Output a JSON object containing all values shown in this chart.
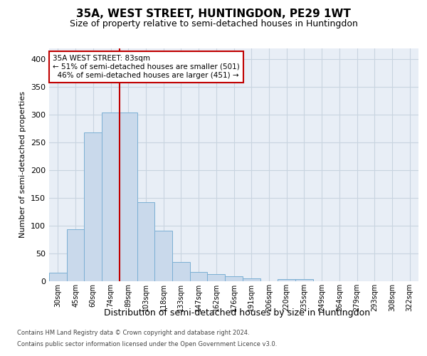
{
  "title": "35A, WEST STREET, HUNTINGDON, PE29 1WT",
  "subtitle": "Size of property relative to semi-detached houses in Huntingdon",
  "xlabel": "Distribution of semi-detached houses by size in Huntingdon",
  "ylabel": "Number of semi-detached properties",
  "footer_line1": "Contains HM Land Registry data © Crown copyright and database right 2024.",
  "footer_line2": "Contains public sector information licensed under the Open Government Licence v3.0.",
  "categories": [
    "30sqm",
    "45sqm",
    "60sqm",
    "74sqm",
    "89sqm",
    "103sqm",
    "118sqm",
    "133sqm",
    "147sqm",
    "162sqm",
    "176sqm",
    "191sqm",
    "206sqm",
    "220sqm",
    "235sqm",
    "249sqm",
    "264sqm",
    "279sqm",
    "293sqm",
    "308sqm",
    "322sqm"
  ],
  "values": [
    15,
    93,
    268,
    304,
    304,
    142,
    91,
    35,
    17,
    13,
    9,
    5,
    0,
    4,
    4,
    0,
    0,
    0,
    0,
    0,
    0
  ],
  "bar_color": "#c9d9eb",
  "bar_edge_color": "#7bafd4",
  "vline_color": "#c00000",
  "vline_x": 3.5,
  "property_label": "35A WEST STREET: 83sqm",
  "pct_smaller": 51,
  "count_smaller": 501,
  "pct_larger": 46,
  "count_larger": 451,
  "annotation_box_edge_color": "#c00000",
  "ylim": [
    0,
    420
  ],
  "yticks": [
    0,
    50,
    100,
    150,
    200,
    250,
    300,
    350,
    400
  ],
  "plot_bg": "#e8eef6",
  "grid_color": "#c8d4e0",
  "title_fontsize": 11,
  "subtitle_fontsize": 9,
  "annot_fontsize": 7.5,
  "ylabel_fontsize": 8,
  "xlabel_fontsize": 9,
  "tick_fontsize": 7,
  "footer_fontsize": 6
}
